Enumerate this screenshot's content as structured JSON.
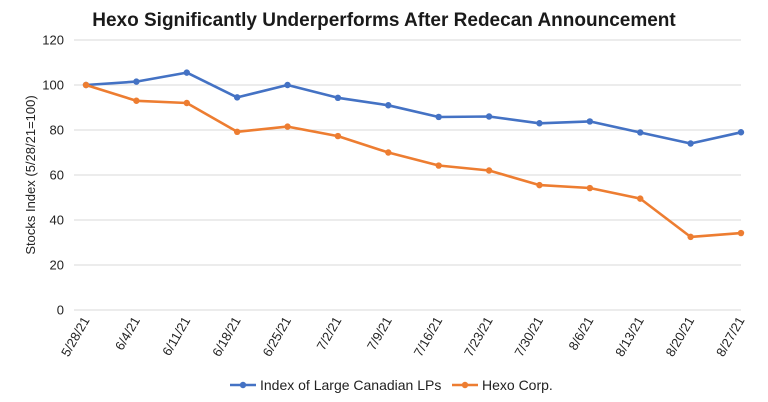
{
  "chart_data": {
    "type": "line",
    "title": "Hexo Significantly Underperforms After Redecan Announcement",
    "xlabel": "",
    "ylabel": "Stocks Index (5/28/21=100)",
    "categories": [
      "5/28/21",
      "6/4/21",
      "6/11/21",
      "6/18/21",
      "6/25/21",
      "7/2/21",
      "7/9/21",
      "7/16/21",
      "7/23/21",
      "7/30/21",
      "8/6/21",
      "8/13/21",
      "8/20/21",
      "8/27/21"
    ],
    "ylim": [
      0,
      120
    ],
    "yticks": [
      "0",
      "20",
      "40",
      "60",
      "80",
      "100",
      "120"
    ],
    "grid": true,
    "legend_position": "bottom",
    "series": [
      {
        "name": "Index of Large Canadian LPs",
        "color": "#4472C4",
        "values": [
          100,
          101.5,
          105.5,
          94.5,
          100,
          94.3,
          91,
          85.8,
          86,
          83,
          83.8,
          78.9,
          74,
          79
        ]
      },
      {
        "name": "Hexo Corp.",
        "color": "#ED7D31",
        "values": [
          100,
          93,
          92,
          79.2,
          81.5,
          77.3,
          70,
          64.2,
          62,
          55.5,
          54.2,
          49.5,
          32.5,
          34.2
        ]
      }
    ]
  }
}
